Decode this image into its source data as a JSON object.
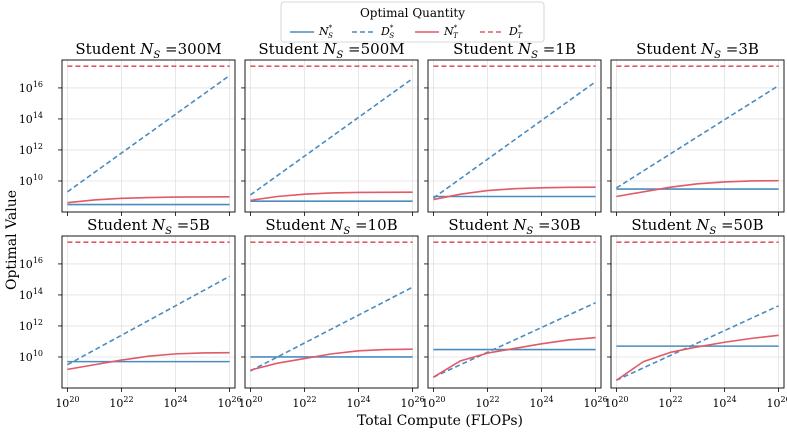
{
  "figure": {
    "xlabel": "Total Compute (FLOPs)",
    "ylabel": "Optimal Value"
  },
  "legend": {
    "title": "Optimal Quantity",
    "entries": [
      {
        "id": "NS",
        "base": "N",
        "sup": "*",
        "sub": "S",
        "color": "#4a8cc0",
        "dash": "solid"
      },
      {
        "id": "DS",
        "base": "D",
        "sup": "*",
        "sub": "S",
        "color": "#4a8cc0",
        "dash": "dashed"
      },
      {
        "id": "NT",
        "base": "N",
        "sup": "*",
        "sub": "T",
        "color": "#e05a67",
        "dash": "solid"
      },
      {
        "id": "DT",
        "base": "D",
        "sup": "*",
        "sub": "T",
        "color": "#e05a67",
        "dash": "dashed"
      }
    ]
  },
  "chart_data": [
    {
      "type": "line",
      "title_prefix": "Student ",
      "title_var": "N",
      "title_sub": "S",
      "title_suffix": " =300M",
      "x_log10": [
        20,
        21,
        22,
        23,
        24,
        25,
        26
      ],
      "series": [
        {
          "name": "N_S*",
          "log10_values": [
            8.48,
            8.48,
            8.48,
            8.48,
            8.48,
            8.48,
            8.48
          ]
        },
        {
          "name": "D_S*",
          "log10_values": [
            9.3,
            10.55,
            11.8,
            13.05,
            14.3,
            15.55,
            16.8
          ]
        },
        {
          "name": "N_T*",
          "log10_values": [
            8.6,
            8.78,
            8.88,
            8.93,
            8.96,
            8.97,
            8.98
          ]
        },
        {
          "name": "D_T*",
          "log10_values": [
            17.4,
            17.4,
            17.4,
            17.4,
            17.4,
            17.4,
            17.4
          ]
        }
      ]
    },
    {
      "type": "line",
      "title_prefix": "Student ",
      "title_var": "N",
      "title_sub": "S",
      "title_suffix": " =500M",
      "x_log10": [
        20,
        21,
        22,
        23,
        24,
        25,
        26
      ],
      "series": [
        {
          "name": "N_S*",
          "log10_values": [
            8.7,
            8.7,
            8.7,
            8.7,
            8.7,
            8.7,
            8.7
          ]
        },
        {
          "name": "D_S*",
          "log10_values": [
            9.1,
            10.35,
            11.6,
            12.85,
            14.1,
            15.35,
            16.6
          ]
        },
        {
          "name": "N_T*",
          "log10_values": [
            8.75,
            9.0,
            9.15,
            9.23,
            9.26,
            9.27,
            9.28
          ]
        },
        {
          "name": "D_T*",
          "log10_values": [
            17.4,
            17.4,
            17.4,
            17.4,
            17.4,
            17.4,
            17.4
          ]
        }
      ]
    },
    {
      "type": "line",
      "title_prefix": "Student ",
      "title_var": "N",
      "title_sub": "S",
      "title_suffix": " =1B",
      "x_log10": [
        20,
        21,
        22,
        23,
        24,
        25,
        26
      ],
      "series": [
        {
          "name": "N_S*",
          "log10_values": [
            9.0,
            9.0,
            9.0,
            9.0,
            9.0,
            9.0,
            9.0
          ]
        },
        {
          "name": "D_S*",
          "log10_values": [
            8.9,
            10.15,
            11.4,
            12.65,
            13.9,
            15.15,
            16.4
          ]
        },
        {
          "name": "N_T*",
          "log10_values": [
            8.8,
            9.15,
            9.38,
            9.5,
            9.56,
            9.59,
            9.6
          ]
        },
        {
          "name": "D_T*",
          "log10_values": [
            17.4,
            17.4,
            17.4,
            17.4,
            17.4,
            17.4,
            17.4
          ]
        }
      ]
    },
    {
      "type": "line",
      "title_prefix": "Student ",
      "title_var": "N",
      "title_sub": "S",
      "title_suffix": " =3B",
      "x_log10": [
        20,
        21,
        22,
        23,
        24,
        25,
        26
      ],
      "series": [
        {
          "name": "N_S*",
          "log10_values": [
            9.48,
            9.48,
            9.48,
            9.48,
            9.48,
            9.48,
            9.48
          ]
        },
        {
          "name": "D_S*",
          "log10_values": [
            9.55,
            10.65,
            11.75,
            12.85,
            13.95,
            15.05,
            16.15
          ]
        },
        {
          "name": "N_T*",
          "log10_values": [
            9.0,
            9.3,
            9.6,
            9.82,
            9.94,
            10.0,
            10.02
          ]
        },
        {
          "name": "D_T*",
          "log10_values": [
            17.4,
            17.4,
            17.4,
            17.4,
            17.4,
            17.4,
            17.4
          ]
        }
      ]
    },
    {
      "type": "line",
      "title_prefix": "Student ",
      "title_var": "N",
      "title_sub": "S",
      "title_suffix": " =5B",
      "x_log10": [
        20,
        21,
        22,
        23,
        24,
        25,
        26
      ],
      "series": [
        {
          "name": "N_S*",
          "log10_values": [
            9.7,
            9.7,
            9.7,
            9.7,
            9.7,
            9.7,
            9.7
          ]
        },
        {
          "name": "D_S*",
          "log10_values": [
            9.5,
            10.45,
            11.4,
            12.35,
            13.3,
            14.25,
            15.2
          ]
        },
        {
          "name": "N_T*",
          "log10_values": [
            9.2,
            9.5,
            9.8,
            10.05,
            10.2,
            10.26,
            10.28
          ]
        },
        {
          "name": "D_T*",
          "log10_values": [
            17.4,
            17.4,
            17.4,
            17.4,
            17.4,
            17.4,
            17.4
          ]
        }
      ]
    },
    {
      "type": "line",
      "title_prefix": "Student ",
      "title_var": "N",
      "title_sub": "S",
      "title_suffix": " =10B",
      "x_log10": [
        20,
        21,
        22,
        23,
        24,
        25,
        26
      ],
      "series": [
        {
          "name": "N_S*",
          "log10_values": [
            10.0,
            10.0,
            10.0,
            10.0,
            10.0,
            10.0,
            10.0
          ]
        },
        {
          "name": "D_S*",
          "log10_values": [
            9.1,
            10.0,
            10.9,
            11.8,
            12.7,
            13.6,
            14.5
          ]
        },
        {
          "name": "N_T*",
          "log10_values": [
            9.15,
            9.6,
            9.9,
            10.2,
            10.4,
            10.48,
            10.5
          ]
        },
        {
          "name": "D_T*",
          "log10_values": [
            17.4,
            17.4,
            17.4,
            17.4,
            17.4,
            17.4,
            17.4
          ]
        }
      ]
    },
    {
      "type": "line",
      "title_prefix": "Student ",
      "title_var": "N",
      "title_sub": "S",
      "title_suffix": " =30B",
      "x_log10": [
        20,
        21,
        22,
        23,
        24,
        25,
        26
      ],
      "series": [
        {
          "name": "N_S*",
          "log10_values": [
            10.48,
            10.48,
            10.48,
            10.48,
            10.48,
            10.48,
            10.48
          ]
        },
        {
          "name": "D_S*",
          "log10_values": [
            8.7,
            9.5,
            10.3,
            11.1,
            11.9,
            12.7,
            13.5
          ]
        },
        {
          "name": "N_T*",
          "log10_values": [
            8.7,
            9.75,
            10.25,
            10.55,
            10.85,
            11.1,
            11.25
          ]
        },
        {
          "name": "D_T*",
          "log10_values": [
            17.4,
            17.4,
            17.4,
            17.4,
            17.4,
            17.4,
            17.4
          ]
        }
      ]
    },
    {
      "type": "line",
      "title_prefix": "Student ",
      "title_var": "N",
      "title_sub": "S",
      "title_suffix": " =50B",
      "x_log10": [
        20,
        21,
        22,
        23,
        24,
        25,
        26
      ],
      "series": [
        {
          "name": "N_S*",
          "log10_values": [
            10.7,
            10.7,
            10.7,
            10.7,
            10.7,
            10.7,
            10.7
          ]
        },
        {
          "name": "D_S*",
          "log10_values": [
            8.5,
            9.3,
            10.1,
            10.9,
            11.7,
            12.5,
            13.3
          ]
        },
        {
          "name": "N_T*",
          "log10_values": [
            8.5,
            9.7,
            10.3,
            10.65,
            10.95,
            11.2,
            11.4
          ]
        },
        {
          "name": "D_T*",
          "log10_values": [
            17.4,
            17.4,
            17.4,
            17.4,
            17.4,
            17.4,
            17.4
          ]
        }
      ]
    }
  ],
  "axes": {
    "x_log10_range": [
      19.8,
      26.2
    ],
    "row1_y_log10_range": [
      8.0,
      17.8
    ],
    "row2_y_log10_range": [
      8.0,
      17.8
    ],
    "x_ticks_log10": [
      20,
      22,
      24,
      26
    ],
    "y_ticks_log10": [
      10,
      12,
      14,
      16
    ],
    "tick_base": "10",
    "grid": true,
    "legend_placement": "top-center"
  }
}
